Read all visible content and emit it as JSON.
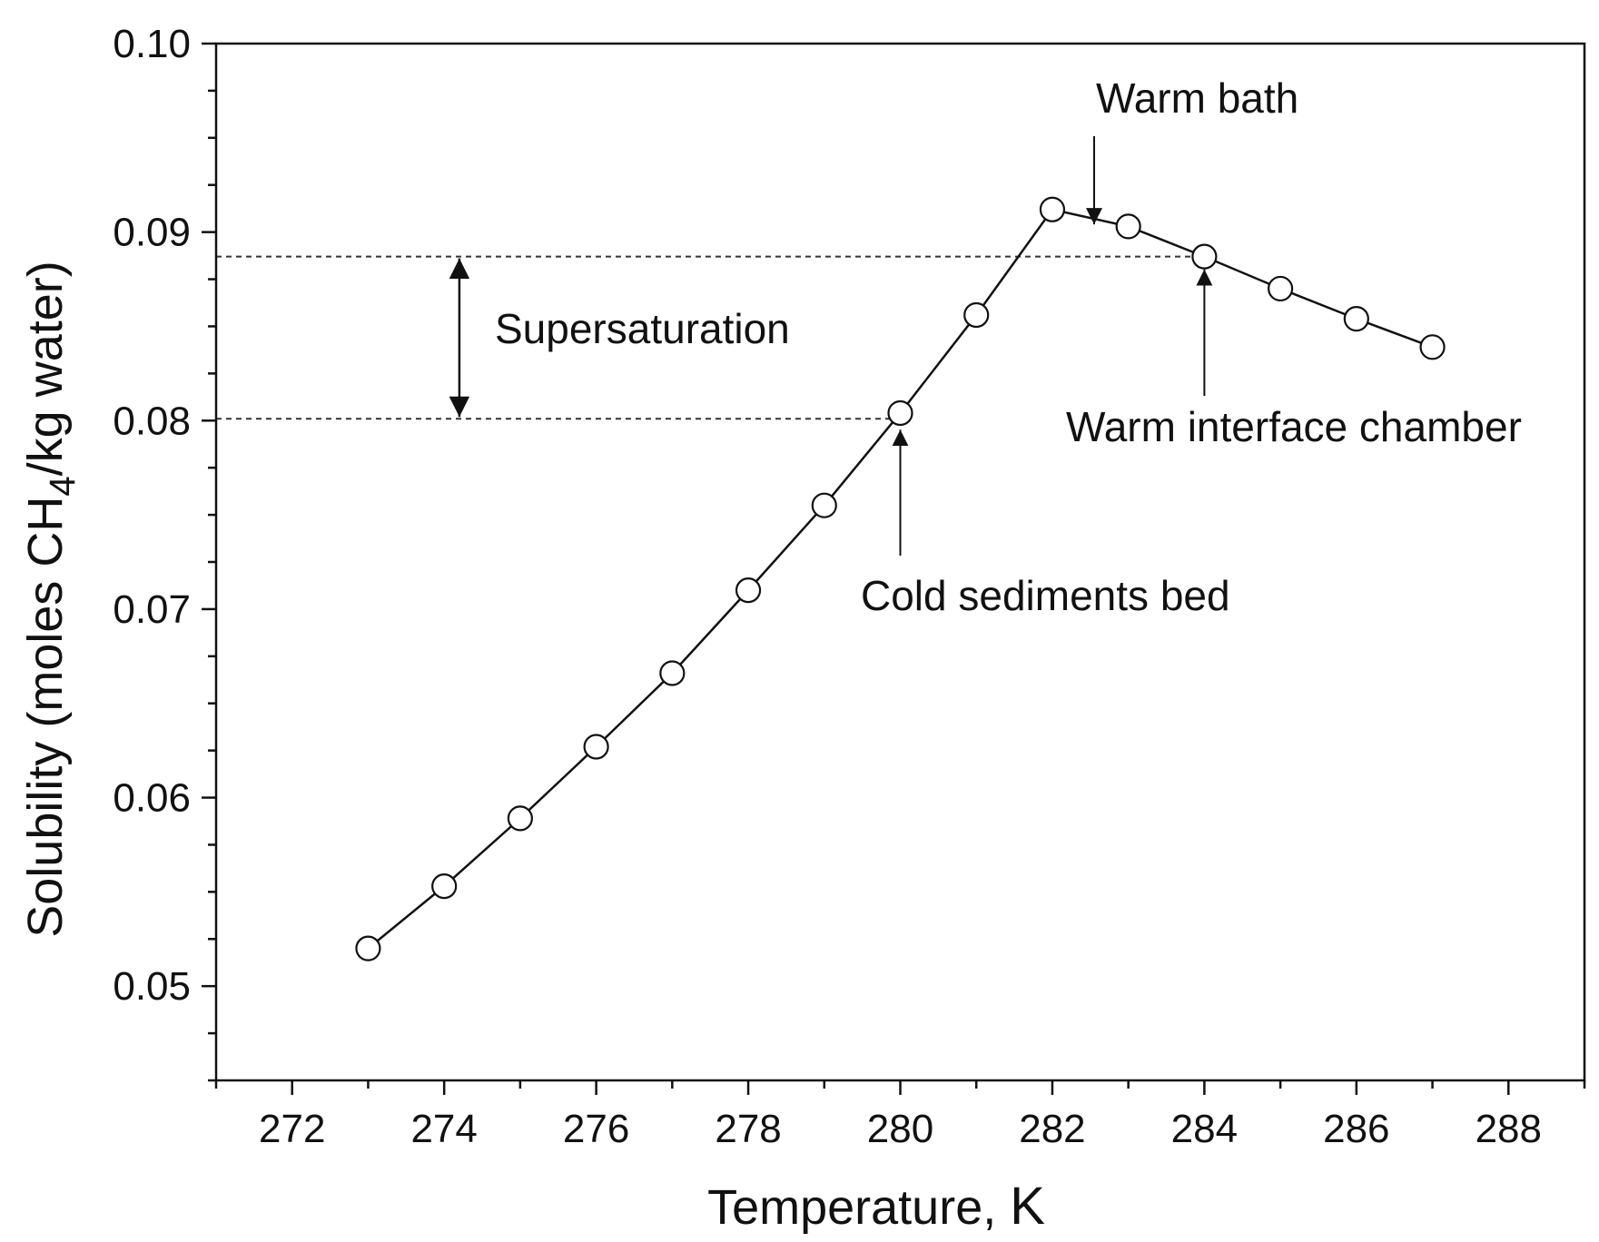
{
  "chart_data": {
    "type": "line",
    "title": "",
    "xlabel_text": "Temperature, ",
    "xlabel_unit": "K",
    "ylabel_parts": {
      "before": "Solubility (moles CH",
      "subscript": "4",
      "after": "/kg water)"
    },
    "xlim": [
      271,
      289
    ],
    "ylim": [
      0.045,
      0.1
    ],
    "x_ticks": [
      272,
      274,
      276,
      278,
      280,
      282,
      284,
      286,
      288
    ],
    "x_tick_labels": [
      "272",
      "274",
      "276",
      "278",
      "280",
      "282",
      "284",
      "286",
      "288"
    ],
    "y_ticks": [
      0.05,
      0.06,
      0.07,
      0.08,
      0.09,
      0.1
    ],
    "y_tick_labels": [
      "0.05",
      "0.06",
      "0.07",
      "0.08",
      "0.09",
      "0.10"
    ],
    "grid": false,
    "series": [
      {
        "name": "CH4 solubility",
        "marker": "open-circle",
        "x": [
          273,
          274,
          275,
          276,
          277,
          278,
          279,
          280,
          281,
          282,
          283,
          284,
          285,
          286,
          287
        ],
        "y": [
          0.052,
          0.0553,
          0.0589,
          0.0627,
          0.0666,
          0.071,
          0.0755,
          0.0804,
          0.0856,
          0.0912,
          0.0903,
          0.0887,
          0.087,
          0.0854,
          0.0839
        ]
      }
    ],
    "reference_lines": [
      {
        "name": "warm-level",
        "y": 0.0887,
        "x_from": 271,
        "x_to": 284
      },
      {
        "name": "cold-level",
        "y": 0.0801,
        "x_from": 271,
        "x_to": 280
      }
    ],
    "annotations": {
      "supersaturation": {
        "text": "Supersaturation",
        "arrow_x": 274.2,
        "y_top": 0.0887,
        "y_bottom": 0.0801
      },
      "warm_bath": {
        "text": "Warm bath",
        "arrow_x": 282.55,
        "arrow_tip_y": 0.0907
      },
      "warm_interface": {
        "text": "Warm interface chamber",
        "arrow_x": 284,
        "arrow_tip_y": 0.0887
      },
      "cold_bed": {
        "text": "Cold sediments bed",
        "arrow_x": 280,
        "arrow_tip_y": 0.0801
      }
    }
  },
  "colors": {
    "line": "#111111",
    "marker_fill": "#ffffff",
    "reference": "#333333"
  }
}
